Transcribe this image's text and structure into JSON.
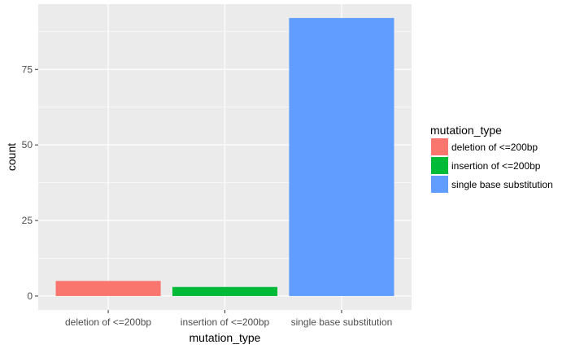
{
  "chart_data": {
    "type": "bar",
    "categories": [
      "deletion of <=200bp",
      "insertion of <=200bp",
      "single base substitution"
    ],
    "values": [
      5,
      3,
      92
    ],
    "colors": [
      "#F8766D",
      "#00BA38",
      "#619CFF"
    ],
    "xlabel": "mutation_type",
    "ylabel": "count",
    "ylim": [
      -4.6,
      96.6
    ],
    "yticks": [
      0,
      25,
      50,
      75
    ],
    "ytick_labels": [
      "0",
      "25",
      "50",
      "75"
    ],
    "grid": true,
    "panel_background": "#EBEBEB",
    "gridline_color": "#FFFFFF",
    "legend": {
      "title": "mutation_type",
      "placement": "right",
      "entries": [
        "deletion of <=200bp",
        "insertion of <=200bp",
        "single base substitution"
      ]
    }
  }
}
